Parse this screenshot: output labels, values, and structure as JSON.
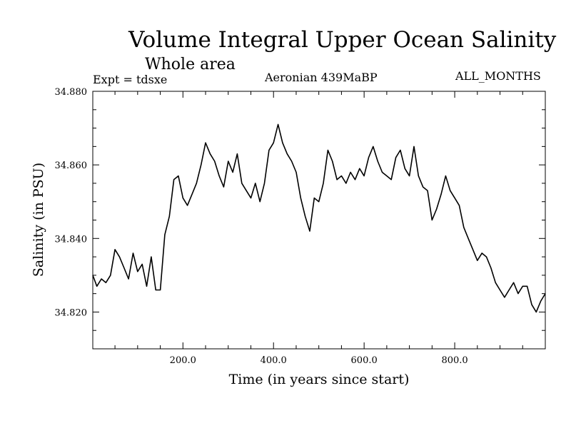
{
  "chart_data": {
    "type": "line",
    "title": "Volume Integral Upper Ocean Salinity",
    "subtitle": "Whole area",
    "expt_label": "Expt = tdsxe",
    "period_label": "Aeronian 439MaBP",
    "months_label": "ALL_MONTHS",
    "xlabel": "Time (in years since start)",
    "ylabel": "Salinity (in PSU)",
    "xlim": [
      1,
      1000
    ],
    "ylim": [
      34.81,
      34.88
    ],
    "x_ticks": [
      200,
      400,
      600,
      800
    ],
    "x_tick_labels": [
      "200.0",
      "400.0",
      "600.0",
      "800.0"
    ],
    "y_ticks": [
      34.82,
      34.84,
      34.86,
      34.88
    ],
    "y_tick_labels": [
      "34.820",
      "34.840",
      "34.860",
      "34.880"
    ],
    "grid": false,
    "series": [
      {
        "name": "salinity",
        "x": [
          1,
          10,
          20,
          30,
          40,
          50,
          60,
          70,
          80,
          90,
          100,
          110,
          120,
          130,
          140,
          150,
          160,
          170,
          180,
          190,
          200,
          210,
          220,
          230,
          240,
          250,
          260,
          270,
          280,
          290,
          300,
          310,
          320,
          330,
          340,
          350,
          360,
          370,
          380,
          390,
          400,
          410,
          420,
          430,
          440,
          450,
          460,
          470,
          480,
          490,
          500,
          510,
          520,
          530,
          540,
          550,
          560,
          570,
          580,
          590,
          600,
          610,
          620,
          630,
          640,
          650,
          660,
          670,
          680,
          690,
          700,
          710,
          720,
          730,
          740,
          750,
          760,
          770,
          780,
          790,
          800,
          810,
          820,
          830,
          840,
          850,
          860,
          870,
          880,
          890,
          900,
          910,
          920,
          930,
          940,
          950,
          960,
          970,
          980,
          990,
          1000
        ],
        "values": [
          34.83,
          34.827,
          34.829,
          34.828,
          34.83,
          34.837,
          34.835,
          34.832,
          34.829,
          34.836,
          34.831,
          34.833,
          34.827,
          34.835,
          34.826,
          34.826,
          34.841,
          34.846,
          34.856,
          34.857,
          34.851,
          34.849,
          34.852,
          34.855,
          34.86,
          34.866,
          34.863,
          34.861,
          34.857,
          34.854,
          34.861,
          34.858,
          34.863,
          34.855,
          34.853,
          34.851,
          34.855,
          34.85,
          34.855,
          34.864,
          34.866,
          34.871,
          34.866,
          34.863,
          34.861,
          34.858,
          34.851,
          34.846,
          34.842,
          34.851,
          34.85,
          34.855,
          34.864,
          34.861,
          34.856,
          34.857,
          34.855,
          34.858,
          34.856,
          34.859,
          34.857,
          34.862,
          34.865,
          34.861,
          34.858,
          34.857,
          34.856,
          34.862,
          34.864,
          34.859,
          34.857,
          34.865,
          34.857,
          34.854,
          34.853,
          34.845,
          34.848,
          34.852,
          34.857,
          34.853,
          34.851,
          34.849,
          34.843,
          34.84,
          34.837,
          34.834,
          34.836,
          34.835,
          34.832,
          34.828,
          34.826,
          34.824,
          34.826,
          34.828,
          34.825,
          34.827,
          34.827,
          34.822,
          34.82,
          34.823,
          34.825
        ]
      }
    ]
  }
}
